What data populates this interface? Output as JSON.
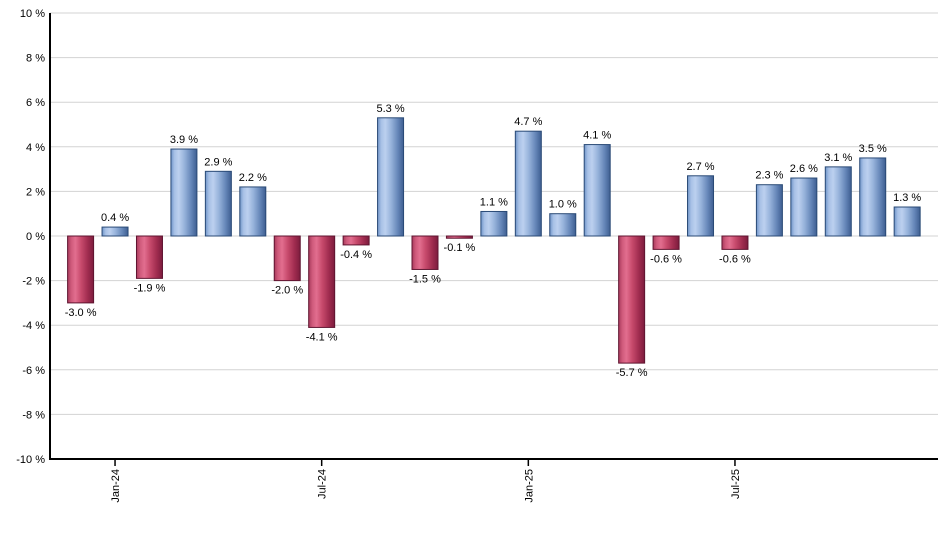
{
  "chart_data": {
    "type": "bar",
    "title": "",
    "xlabel": "",
    "ylabel": "",
    "ylim": [
      -10,
      10
    ],
    "y_tick_step": 2,
    "y_tick_labels": [
      "10 %",
      "8 %",
      "6 %",
      "4 %",
      "2 %",
      "0 %",
      "-2 %",
      "-4 %",
      "-6 %",
      "-8 %",
      "-10 %"
    ],
    "x_ticks": [
      {
        "label": "Jan-24",
        "bar_index": 1
      },
      {
        "label": "Jul-24",
        "bar_index": 7
      },
      {
        "label": "Jan-25",
        "bar_index": 13
      },
      {
        "label": "Jul-25",
        "bar_index": 19
      }
    ],
    "values": [
      -3.0,
      0.4,
      -1.9,
      3.9,
      2.9,
      2.2,
      -2.0,
      -4.1,
      -0.4,
      5.3,
      -1.5,
      -0.1,
      1.1,
      4.7,
      1.0,
      4.1,
      -5.7,
      -0.6,
      2.7,
      -0.6,
      2.3,
      2.6,
      3.1,
      3.5,
      1.3
    ],
    "bar_value_labels": [
      "-3.0 %",
      "0.4 %",
      "-1.9 %",
      "3.9 %",
      "2.9 %",
      "2.2 %",
      "-2.0 %",
      "-4.1 %",
      "-0.4 %",
      "5.3 %",
      "-1.5 %",
      "-0.1 %",
      "1.1 %",
      "4.7 %",
      "1.0 %",
      "4.1 %",
      "-5.7 %",
      "-0.6 %",
      "2.7 %",
      "-0.6 %",
      "2.3 %",
      "2.6 %",
      "3.1 %",
      "3.5 %",
      "1.3 %"
    ],
    "legend": {
      "visible": false
    },
    "grid": {
      "horizontal": true,
      "vertical": false
    },
    "colors": {
      "positive_gradient": [
        [
          "0%",
          "#7095c9"
        ],
        [
          "14%",
          "#a8c1e6"
        ],
        [
          "30%",
          "#bcd0ef"
        ],
        [
          "52%",
          "#97b3db"
        ],
        [
          "78%",
          "#6586b8"
        ],
        [
          "100%",
          "#3e5e91"
        ]
      ],
      "positive_stroke": "#2a4a76",
      "negative_gradient": [
        [
          "0%",
          "#a83a5c"
        ],
        [
          "14%",
          "#cf5a7b"
        ],
        [
          "30%",
          "#e26e8f"
        ],
        [
          "52%",
          "#c74a6c"
        ],
        [
          "78%",
          "#a02c4f"
        ],
        [
          "100%",
          "#7c1c3d"
        ]
      ],
      "negative_stroke": "#5f1430",
      "gridline": "#d3d3d3",
      "axis": "#000000",
      "label_text": "#000000"
    }
  }
}
